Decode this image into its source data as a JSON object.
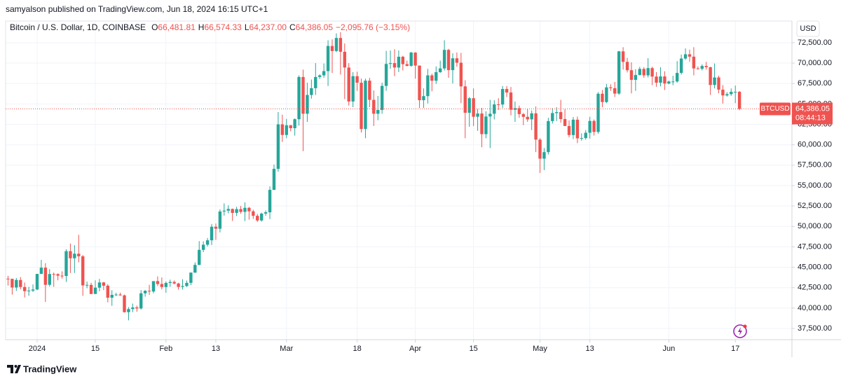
{
  "chart_data": {
    "type": "candlestick",
    "attribution": "samyalson published on TradingView.com, Jun 18, 2024 16:15 UTC+1",
    "symbol": "Bitcoin / U.S. Dollar, 1D, COINBASE",
    "legend_ohlc": [
      {
        "key": "O",
        "value": "66,481.81"
      },
      {
        "key": "H",
        "value": "66,574.33"
      },
      {
        "key": "L",
        "value": "64,237.00"
      },
      {
        "key": "C",
        "value": "64,386.05"
      }
    ],
    "change": "−2,095.76 (−3.15%)",
    "currency": "USD",
    "ticker": "BTCUSD",
    "last_price_label": "64,386.05",
    "countdown": "08:44:13",
    "brand": "TradingView",
    "up_color": "#26a69a",
    "down_color": "#ef5350",
    "grid": true,
    "ylim": [
      36130,
      74040
    ],
    "yticks": [
      {
        "value": 37500,
        "label": "37,500.00"
      },
      {
        "value": 40000,
        "label": "40,000.00"
      },
      {
        "value": 42500,
        "label": "42,500.00"
      },
      {
        "value": 45000,
        "label": "45,000.00"
      },
      {
        "value": 47500,
        "label": "47,500.00"
      },
      {
        "value": 50000,
        "label": "50,000.00"
      },
      {
        "value": 52500,
        "label": "52,500.00"
      },
      {
        "value": 55000,
        "label": "55,000.00"
      },
      {
        "value": 57500,
        "label": "57,500.00"
      },
      {
        "value": 60000,
        "label": "60,000.00"
      },
      {
        "value": 62500,
        "label": "62,500.00"
      },
      {
        "value": 65000,
        "label": "65,000.00"
      },
      {
        "value": 67500,
        "label": "67,500.00"
      },
      {
        "value": 70000,
        "label": "70,000.00"
      },
      {
        "value": 72500,
        "label": "72,500.00"
      }
    ],
    "xticks": [
      {
        "value": 7,
        "label": "2024"
      },
      {
        "value": 21,
        "label": "15"
      },
      {
        "value": 38,
        "label": "Feb"
      },
      {
        "value": 50,
        "label": "13"
      },
      {
        "value": 67,
        "label": "Mar"
      },
      {
        "value": 84,
        "label": "18"
      },
      {
        "value": 98,
        "label": "Apr"
      },
      {
        "value": 112,
        "label": "15"
      },
      {
        "value": 128,
        "label": "May"
      },
      {
        "value": 140,
        "label": "13"
      },
      {
        "value": 159,
        "label": "Jun"
      },
      {
        "value": 175,
        "label": "17"
      }
    ],
    "candles": [
      {
        "o": 43600,
        "h": 43950,
        "l": 42750,
        "c": 43580
      },
      {
        "o": 43580,
        "h": 43600,
        "l": 41650,
        "c": 42520
      },
      {
        "o": 42520,
        "h": 43680,
        "l": 42100,
        "c": 43440
      },
      {
        "o": 43440,
        "h": 43800,
        "l": 42300,
        "c": 42580
      },
      {
        "o": 42580,
        "h": 43130,
        "l": 41300,
        "c": 42070
      },
      {
        "o": 42070,
        "h": 42600,
        "l": 41500,
        "c": 42140
      },
      {
        "o": 42140,
        "h": 42900,
        "l": 41960,
        "c": 42280
      },
      {
        "o": 42280,
        "h": 44190,
        "l": 42190,
        "c": 44180
      },
      {
        "o": 44180,
        "h": 45900,
        "l": 44200,
        "c": 44950
      },
      {
        "o": 44950,
        "h": 45500,
        "l": 40750,
        "c": 42850
      },
      {
        "o": 42850,
        "h": 44770,
        "l": 42630,
        "c": 44170
      },
      {
        "o": 44170,
        "h": 44350,
        "l": 42600,
        "c": 44160
      },
      {
        "o": 44160,
        "h": 44250,
        "l": 43400,
        "c": 43970
      },
      {
        "o": 43970,
        "h": 44500,
        "l": 43600,
        "c": 43930
      },
      {
        "o": 43930,
        "h": 47200,
        "l": 43200,
        "c": 46970
      },
      {
        "o": 46970,
        "h": 47900,
        "l": 44300,
        "c": 46100
      },
      {
        "o": 46100,
        "h": 47700,
        "l": 44300,
        "c": 46660
      },
      {
        "o": 46660,
        "h": 48970,
        "l": 45600,
        "c": 46340
      },
      {
        "o": 46340,
        "h": 46500,
        "l": 41500,
        "c": 42780
      },
      {
        "o": 42780,
        "h": 43250,
        "l": 42430,
        "c": 42840
      },
      {
        "o": 42840,
        "h": 43100,
        "l": 41700,
        "c": 41730
      },
      {
        "o": 41730,
        "h": 43400,
        "l": 41720,
        "c": 42500
      },
      {
        "o": 42500,
        "h": 43570,
        "l": 42050,
        "c": 43140
      },
      {
        "o": 43140,
        "h": 43200,
        "l": 42200,
        "c": 42740
      },
      {
        "o": 42740,
        "h": 42930,
        "l": 40700,
        "c": 41270
      },
      {
        "o": 41270,
        "h": 42190,
        "l": 40280,
        "c": 41620
      },
      {
        "o": 41620,
        "h": 41880,
        "l": 41470,
        "c": 41660
      },
      {
        "o": 41660,
        "h": 41890,
        "l": 41500,
        "c": 41560
      },
      {
        "o": 41560,
        "h": 41650,
        "l": 39450,
        "c": 39500
      },
      {
        "o": 39500,
        "h": 40120,
        "l": 38500,
        "c": 39880
      },
      {
        "o": 39880,
        "h": 40550,
        "l": 39500,
        "c": 40080
      },
      {
        "o": 40080,
        "h": 40300,
        "l": 39550,
        "c": 39950
      },
      {
        "o": 39950,
        "h": 42200,
        "l": 39820,
        "c": 41810
      },
      {
        "o": 41810,
        "h": 42200,
        "l": 41400,
        "c": 42120
      },
      {
        "o": 42120,
        "h": 42850,
        "l": 41620,
        "c": 42030
      },
      {
        "o": 42030,
        "h": 43300,
        "l": 41800,
        "c": 43300
      },
      {
        "o": 43300,
        "h": 43880,
        "l": 42700,
        "c": 42950
      },
      {
        "o": 42950,
        "h": 43750,
        "l": 42280,
        "c": 42580
      },
      {
        "o": 42580,
        "h": 43260,
        "l": 41880,
        "c": 43080
      },
      {
        "o": 43080,
        "h": 43480,
        "l": 42600,
        "c": 43200
      },
      {
        "o": 43200,
        "h": 43380,
        "l": 42900,
        "c": 43010
      },
      {
        "o": 43010,
        "h": 43100,
        "l": 42250,
        "c": 42590
      },
      {
        "o": 42590,
        "h": 43530,
        "l": 42270,
        "c": 42700
      },
      {
        "o": 42700,
        "h": 43380,
        "l": 42580,
        "c": 43090
      },
      {
        "o": 43090,
        "h": 44370,
        "l": 42800,
        "c": 44340
      },
      {
        "o": 44340,
        "h": 45600,
        "l": 44330,
        "c": 45290
      },
      {
        "o": 45290,
        "h": 48200,
        "l": 45250,
        "c": 47130
      },
      {
        "o": 47130,
        "h": 48170,
        "l": 46850,
        "c": 47760
      },
      {
        "o": 47760,
        "h": 48580,
        "l": 47540,
        "c": 48300
      },
      {
        "o": 48300,
        "h": 50300,
        "l": 47720,
        "c": 49960
      },
      {
        "o": 49960,
        "h": 50360,
        "l": 48350,
        "c": 49720
      },
      {
        "o": 49720,
        "h": 52080,
        "l": 49270,
        "c": 51830
      },
      {
        "o": 51830,
        "h": 52820,
        "l": 51330,
        "c": 51930
      },
      {
        "o": 51930,
        "h": 52580,
        "l": 51600,
        "c": 52140
      },
      {
        "o": 52140,
        "h": 52190,
        "l": 50670,
        "c": 51660
      },
      {
        "o": 51660,
        "h": 52400,
        "l": 51270,
        "c": 52120
      },
      {
        "o": 52120,
        "h": 52500,
        "l": 51560,
        "c": 51780
      },
      {
        "o": 51780,
        "h": 52950,
        "l": 50650,
        "c": 52280
      },
      {
        "o": 52280,
        "h": 52380,
        "l": 50830,
        "c": 51850
      },
      {
        "o": 51850,
        "h": 52050,
        "l": 50920,
        "c": 51300
      },
      {
        "o": 51300,
        "h": 51530,
        "l": 50550,
        "c": 50730
      },
      {
        "o": 50730,
        "h": 51690,
        "l": 50590,
        "c": 51570
      },
      {
        "o": 51570,
        "h": 51960,
        "l": 51300,
        "c": 51730
      },
      {
        "o": 51730,
        "h": 54900,
        "l": 50900,
        "c": 54480
      },
      {
        "o": 54480,
        "h": 57580,
        "l": 54450,
        "c": 57050
      },
      {
        "o": 57050,
        "h": 64000,
        "l": 56700,
        "c": 62500
      },
      {
        "o": 62500,
        "h": 63680,
        "l": 60350,
        "c": 61200
      },
      {
        "o": 61200,
        "h": 63170,
        "l": 60800,
        "c": 62390
      },
      {
        "o": 62390,
        "h": 62430,
        "l": 61650,
        "c": 62030
      },
      {
        "o": 62030,
        "h": 63230,
        "l": 61120,
        "c": 63130
      },
      {
        "o": 63130,
        "h": 68500,
        "l": 62350,
        "c": 68300
      },
      {
        "o": 68300,
        "h": 69200,
        "l": 59220,
        "c": 63800
      },
      {
        "o": 63800,
        "h": 67600,
        "l": 62800,
        "c": 66100
      },
      {
        "o": 66100,
        "h": 67990,
        "l": 65650,
        "c": 66930
      },
      {
        "o": 66930,
        "h": 70000,
        "l": 66100,
        "c": 68300
      },
      {
        "o": 68300,
        "h": 68630,
        "l": 68050,
        "c": 68500
      },
      {
        "o": 68500,
        "h": 69950,
        "l": 68200,
        "c": 69020
      },
      {
        "o": 69020,
        "h": 72800,
        "l": 67200,
        "c": 72100
      },
      {
        "o": 72100,
        "h": 72900,
        "l": 68800,
        "c": 71480
      },
      {
        "o": 71480,
        "h": 73650,
        "l": 71340,
        "c": 73080
      },
      {
        "o": 73080,
        "h": 73780,
        "l": 68600,
        "c": 71390
      },
      {
        "o": 71390,
        "h": 72400,
        "l": 65600,
        "c": 69460
      },
      {
        "o": 69460,
        "h": 70000,
        "l": 64800,
        "c": 65300
      },
      {
        "o": 65300,
        "h": 68900,
        "l": 64600,
        "c": 68400
      },
      {
        "o": 68400,
        "h": 68950,
        "l": 66600,
        "c": 67600
      },
      {
        "o": 67600,
        "h": 68100,
        "l": 61500,
        "c": 61930
      },
      {
        "o": 61930,
        "h": 68100,
        "l": 60800,
        "c": 67850
      },
      {
        "o": 67850,
        "h": 68200,
        "l": 64600,
        "c": 65500
      },
      {
        "o": 65500,
        "h": 66650,
        "l": 62300,
        "c": 63800
      },
      {
        "o": 63800,
        "h": 65980,
        "l": 63000,
        "c": 64260
      },
      {
        "o": 64260,
        "h": 67600,
        "l": 63800,
        "c": 67210
      },
      {
        "o": 67210,
        "h": 71500,
        "l": 66600,
        "c": 69900
      },
      {
        "o": 69900,
        "h": 71550,
        "l": 69300,
        "c": 70000
      },
      {
        "o": 70000,
        "h": 71700,
        "l": 68400,
        "c": 69460
      },
      {
        "o": 69460,
        "h": 71550,
        "l": 68900,
        "c": 70780
      },
      {
        "o": 70780,
        "h": 70900,
        "l": 69100,
        "c": 69870
      },
      {
        "o": 69870,
        "h": 70300,
        "l": 69600,
        "c": 69660
      },
      {
        "o": 69660,
        "h": 71380,
        "l": 69560,
        "c": 71290
      },
      {
        "o": 71290,
        "h": 71330,
        "l": 68100,
        "c": 69700
      },
      {
        "o": 69700,
        "h": 69700,
        "l": 64500,
        "c": 65460
      },
      {
        "o": 65460,
        "h": 66900,
        "l": 64500,
        "c": 65960
      },
      {
        "o": 65960,
        "h": 69300,
        "l": 65060,
        "c": 68500
      },
      {
        "o": 68500,
        "h": 68700,
        "l": 66550,
        "c": 67840
      },
      {
        "o": 67840,
        "h": 69600,
        "l": 67450,
        "c": 68890
      },
      {
        "o": 68890,
        "h": 70300,
        "l": 68800,
        "c": 69350
      },
      {
        "o": 69350,
        "h": 72800,
        "l": 69100,
        "c": 71620
      },
      {
        "o": 71620,
        "h": 71750,
        "l": 68200,
        "c": 69140
      },
      {
        "o": 69140,
        "h": 71200,
        "l": 67500,
        "c": 70590
      },
      {
        "o": 70590,
        "h": 71300,
        "l": 69560,
        "c": 70050
      },
      {
        "o": 70050,
        "h": 71250,
        "l": 65100,
        "c": 67150
      },
      {
        "o": 67150,
        "h": 67900,
        "l": 60800,
        "c": 63920
      },
      {
        "o": 63920,
        "h": 65850,
        "l": 62200,
        "c": 65700
      },
      {
        "o": 65700,
        "h": 66900,
        "l": 62300,
        "c": 63430
      },
      {
        "o": 63430,
        "h": 64370,
        "l": 61700,
        "c": 63830
      },
      {
        "o": 63830,
        "h": 64500,
        "l": 59700,
        "c": 61300
      },
      {
        "o": 61300,
        "h": 64100,
        "l": 60800,
        "c": 63460
      },
      {
        "o": 63460,
        "h": 65500,
        "l": 59600,
        "c": 63800
      },
      {
        "o": 63800,
        "h": 65450,
        "l": 63100,
        "c": 64940
      },
      {
        "o": 64940,
        "h": 65700,
        "l": 64250,
        "c": 64930
      },
      {
        "o": 64930,
        "h": 67200,
        "l": 64500,
        "c": 66830
      },
      {
        "o": 66830,
        "h": 67200,
        "l": 65850,
        "c": 66400
      },
      {
        "o": 66400,
        "h": 67080,
        "l": 63600,
        "c": 64290
      },
      {
        "o": 64290,
        "h": 65300,
        "l": 62800,
        "c": 64480
      },
      {
        "o": 64480,
        "h": 64800,
        "l": 63300,
        "c": 63750
      },
      {
        "o": 63750,
        "h": 63900,
        "l": 62400,
        "c": 63420
      },
      {
        "o": 63420,
        "h": 64350,
        "l": 62800,
        "c": 63110
      },
      {
        "o": 63110,
        "h": 64200,
        "l": 61800,
        "c": 63850
      },
      {
        "o": 63850,
        "h": 64700,
        "l": 59100,
        "c": 60630
      },
      {
        "o": 60630,
        "h": 60800,
        "l": 56550,
        "c": 58300
      },
      {
        "o": 58300,
        "h": 59600,
        "l": 56900,
        "c": 59100
      },
      {
        "o": 59100,
        "h": 63300,
        "l": 58800,
        "c": 62900
      },
      {
        "o": 62900,
        "h": 64500,
        "l": 62600,
        "c": 63880
      },
      {
        "o": 63880,
        "h": 64600,
        "l": 62900,
        "c": 64000
      },
      {
        "o": 64000,
        "h": 65500,
        "l": 62700,
        "c": 63150
      },
      {
        "o": 63150,
        "h": 64350,
        "l": 62300,
        "c": 62300
      },
      {
        "o": 62300,
        "h": 62980,
        "l": 60900,
        "c": 61190
      },
      {
        "o": 61190,
        "h": 63400,
        "l": 60700,
        "c": 63070
      },
      {
        "o": 63070,
        "h": 63450,
        "l": 60200,
        "c": 60790
      },
      {
        "o": 60790,
        "h": 61400,
        "l": 60500,
        "c": 60820
      },
      {
        "o": 60820,
        "h": 61800,
        "l": 60630,
        "c": 61470
      },
      {
        "o": 61470,
        "h": 63420,
        "l": 60750,
        "c": 62920
      },
      {
        "o": 62920,
        "h": 63100,
        "l": 61130,
        "c": 61570
      },
      {
        "o": 61570,
        "h": 66450,
        "l": 61350,
        "c": 66250
      },
      {
        "o": 66250,
        "h": 66700,
        "l": 64600,
        "c": 65230
      },
      {
        "o": 65230,
        "h": 67450,
        "l": 65100,
        "c": 67030
      },
      {
        "o": 67030,
        "h": 67400,
        "l": 66600,
        "c": 66930
      },
      {
        "o": 66930,
        "h": 67700,
        "l": 65850,
        "c": 66270
      },
      {
        "o": 66270,
        "h": 71500,
        "l": 66100,
        "c": 71440
      },
      {
        "o": 71440,
        "h": 71950,
        "l": 69200,
        "c": 70150
      },
      {
        "o": 70150,
        "h": 70650,
        "l": 68850,
        "c": 69130
      },
      {
        "o": 69130,
        "h": 70100,
        "l": 66300,
        "c": 67950
      },
      {
        "o": 67950,
        "h": 69250,
        "l": 66600,
        "c": 68540
      },
      {
        "o": 68540,
        "h": 69550,
        "l": 68500,
        "c": 69290
      },
      {
        "o": 69290,
        "h": 69500,
        "l": 68200,
        "c": 68500
      },
      {
        "o": 68500,
        "h": 70600,
        "l": 68250,
        "c": 69390
      },
      {
        "o": 69390,
        "h": 69560,
        "l": 67300,
        "c": 68350
      },
      {
        "o": 68350,
        "h": 68900,
        "l": 67100,
        "c": 67600
      },
      {
        "o": 67600,
        "h": 69500,
        "l": 67150,
        "c": 68370
      },
      {
        "o": 68370,
        "h": 69000,
        "l": 66700,
        "c": 67500
      },
      {
        "o": 67500,
        "h": 67850,
        "l": 67400,
        "c": 67750
      },
      {
        "o": 67750,
        "h": 68450,
        "l": 67300,
        "c": 67750
      },
      {
        "o": 67750,
        "h": 70250,
        "l": 67600,
        "c": 68800
      },
      {
        "o": 68800,
        "h": 71050,
        "l": 68600,
        "c": 70560
      },
      {
        "o": 70560,
        "h": 71800,
        "l": 70400,
        "c": 71080
      },
      {
        "o": 71080,
        "h": 71650,
        "l": 70150,
        "c": 70790
      },
      {
        "o": 70790,
        "h": 71950,
        "l": 68500,
        "c": 69350
      },
      {
        "o": 69350,
        "h": 69600,
        "l": 69200,
        "c": 69300
      },
      {
        "o": 69300,
        "h": 69850,
        "l": 69100,
        "c": 69650
      },
      {
        "o": 69650,
        "h": 70150,
        "l": 69200,
        "c": 69500
      },
      {
        "o": 69500,
        "h": 69550,
        "l": 66100,
        "c": 67320
      },
      {
        "o": 67320,
        "h": 69950,
        "l": 66900,
        "c": 68240
      },
      {
        "o": 68240,
        "h": 68450,
        "l": 66300,
        "c": 66750
      },
      {
        "o": 66750,
        "h": 67300,
        "l": 65050,
        "c": 66040
      },
      {
        "o": 66040,
        "h": 66450,
        "l": 65900,
        "c": 66200
      },
      {
        "o": 66200,
        "h": 66900,
        "l": 66000,
        "c": 66480
      },
      {
        "o": 66480,
        "h": 67250,
        "l": 65100,
        "c": 66480
      },
      {
        "o": 66481.81,
        "h": 66574.33,
        "l": 64237.0,
        "c": 64386.05
      }
    ]
  }
}
